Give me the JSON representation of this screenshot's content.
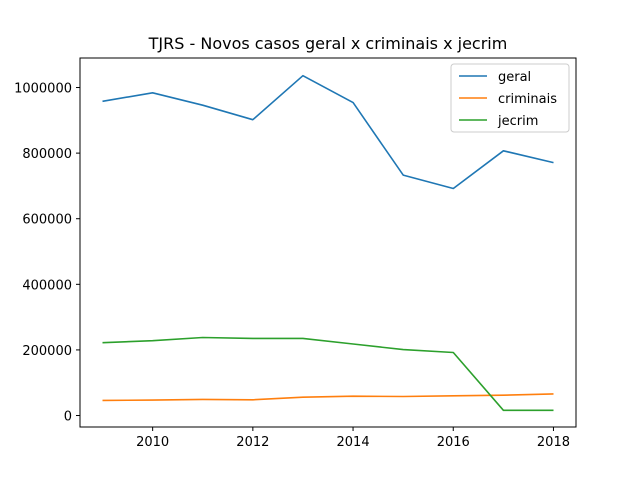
{
  "chart_data": {
    "type": "line",
    "title": "TJRS - Novos casos geral x criminais x jecrim",
    "xlabel": "",
    "ylabel": "",
    "x": [
      2009,
      2010,
      2011,
      2012,
      2013,
      2014,
      2015,
      2016,
      2017,
      2018
    ],
    "xlim": [
      2008.55,
      2018.45
    ],
    "ylim": [
      -35000,
      1090000
    ],
    "xticks": [
      2010,
      2012,
      2014,
      2016,
      2018
    ],
    "yticks": [
      0,
      200000,
      400000,
      600000,
      800000,
      1000000
    ],
    "grid": false,
    "legend_position": "top-right",
    "series": [
      {
        "name": "geral",
        "color": "#1f77b4",
        "values": [
          958000,
          984000,
          946000,
          902000,
          1036000,
          954000,
          733000,
          692000,
          807000,
          771000
        ]
      },
      {
        "name": "criminais",
        "color": "#ff7f0e",
        "values": [
          46000,
          47000,
          49000,
          48000,
          56000,
          59000,
          58000,
          60000,
          62000,
          66000
        ]
      },
      {
        "name": "jecrim",
        "color": "#2ca02c",
        "values": [
          222000,
          228000,
          238000,
          235000,
          235000,
          218000,
          201000,
          192000,
          16000,
          16000
        ]
      }
    ]
  }
}
